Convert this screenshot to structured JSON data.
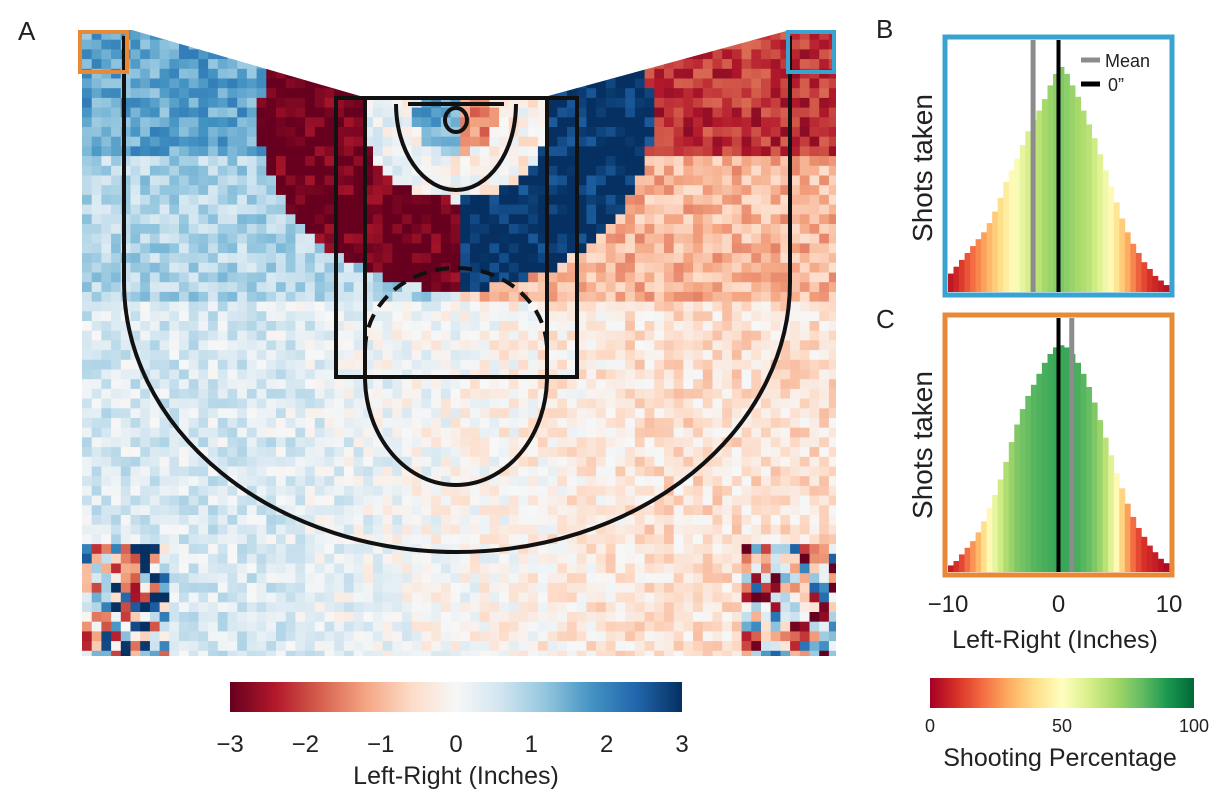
{
  "panels": {
    "a": "A",
    "b": "B",
    "c": "C"
  },
  "court_colorbar": {
    "label": "Left-Right (Inches)",
    "ticks": [
      "−3",
      "−2",
      "−1",
      "0",
      "1",
      "2",
      "3"
    ],
    "range": [
      -3,
      3
    ],
    "colors": [
      "#67001f",
      "#b2182b",
      "#d6604d",
      "#f4a582",
      "#fddbc7",
      "#f7f7f7",
      "#d1e5f0",
      "#92c5de",
      "#4393c3",
      "#2166ac",
      "#053061"
    ]
  },
  "pct_colorbar": {
    "label": "Shooting Percentage",
    "ticks": [
      "0",
      "50",
      "100"
    ],
    "range": [
      0,
      100
    ],
    "colors": [
      "#a50026",
      "#d73027",
      "#f46d43",
      "#fdae61",
      "#fee08b",
      "#ffffbf",
      "#d9ef8b",
      "#a6d96a",
      "#66bd63",
      "#1a9850",
      "#006837"
    ]
  },
  "highlight_colors": {
    "b": "#3ba3cf",
    "c": "#e8893a"
  },
  "court_colors": {
    "line": "#111111"
  },
  "chart_data": [
    {
      "type": "heatmap",
      "title": "",
      "xlabel": "",
      "ylabel": "",
      "colorbar_label": "Left-Right (Inches)",
      "value_range": [
        -3,
        3
      ],
      "description_of_regions": {
        "upper_left_wing": 1,
        "upper_right_wing": -2,
        "left_elbow_band": -3,
        "right_elbow_band": 3,
        "lower_left": 0.5,
        "lower_right": -0.5
      }
    },
    {
      "type": "bar",
      "panel": "B",
      "xlabel": "",
      "ylabel": "Shots taken",
      "xlim": [
        -10,
        10
      ],
      "legend": [
        "Mean",
        "0”"
      ],
      "mean": -2.3,
      "zero": 0,
      "x": [
        -10,
        -9.5,
        -9,
        -8.5,
        -8,
        -7.5,
        -7,
        -6.5,
        -6,
        -5.5,
        -5,
        -4.5,
        -4,
        -3.5,
        -3,
        -2.5,
        -2,
        -1.5,
        -1,
        -0.5,
        0,
        0.5,
        1,
        1.5,
        2,
        2.5,
        3,
        3.5,
        4,
        4.5,
        5,
        5.5,
        6,
        6.5,
        7,
        7.5,
        8,
        8.5,
        9,
        9.5
      ],
      "values": [
        16,
        22,
        28,
        34,
        40,
        46,
        52,
        60,
        70,
        82,
        96,
        106,
        116,
        128,
        140,
        150,
        158,
        168,
        180,
        190,
        196,
        190,
        180,
        170,
        158,
        146,
        134,
        120,
        106,
        92,
        78,
        64,
        52,
        42,
        34,
        26,
        20,
        14,
        10,
        6
      ],
      "pct": [
        5,
        8,
        12,
        16,
        20,
        24,
        28,
        32,
        36,
        40,
        44,
        48,
        52,
        56,
        60,
        64,
        66,
        70,
        72,
        74,
        76,
        74,
        72,
        70,
        68,
        66,
        62,
        58,
        54,
        48,
        42,
        36,
        30,
        24,
        18,
        14,
        10,
        8,
        6,
        4
      ]
    },
    {
      "type": "bar",
      "panel": "C",
      "xlabel": "Left-Right (Inches)",
      "ylabel": "Shots taken",
      "xlim": [
        -10,
        10
      ],
      "xticks": [
        "−10",
        "0",
        "10"
      ],
      "legend": [
        "Mean",
        "0”"
      ],
      "mean": 1.2,
      "zero": 0,
      "x": [
        -10,
        -9.5,
        -9,
        -8.5,
        -8,
        -7.5,
        -7,
        -6.5,
        -6,
        -5.5,
        -5,
        -4.5,
        -4,
        -3.5,
        -3,
        -2.5,
        -2,
        -1.5,
        -1,
        -0.5,
        0,
        0.5,
        1,
        1.5,
        2,
        2.5,
        3,
        3.5,
        4,
        4.5,
        5,
        5.5,
        6,
        6.5,
        7,
        7.5,
        8,
        8.5,
        9,
        9.5
      ],
      "values": [
        6,
        10,
        16,
        22,
        28,
        36,
        46,
        58,
        70,
        84,
        100,
        118,
        134,
        148,
        160,
        170,
        180,
        190,
        198,
        204,
        206,
        204,
        198,
        190,
        180,
        168,
        154,
        138,
        122,
        106,
        90,
        76,
        62,
        50,
        40,
        32,
        24,
        18,
        12,
        8
      ],
      "pct": [
        6,
        10,
        14,
        20,
        26,
        32,
        40,
        48,
        56,
        62,
        68,
        72,
        76,
        78,
        80,
        82,
        83,
        84,
        85,
        86,
        86,
        86,
        85,
        84,
        82,
        80,
        76,
        72,
        66,
        58,
        48,
        38,
        28,
        20,
        14,
        10,
        8,
        6,
        4,
        2
      ]
    }
  ]
}
